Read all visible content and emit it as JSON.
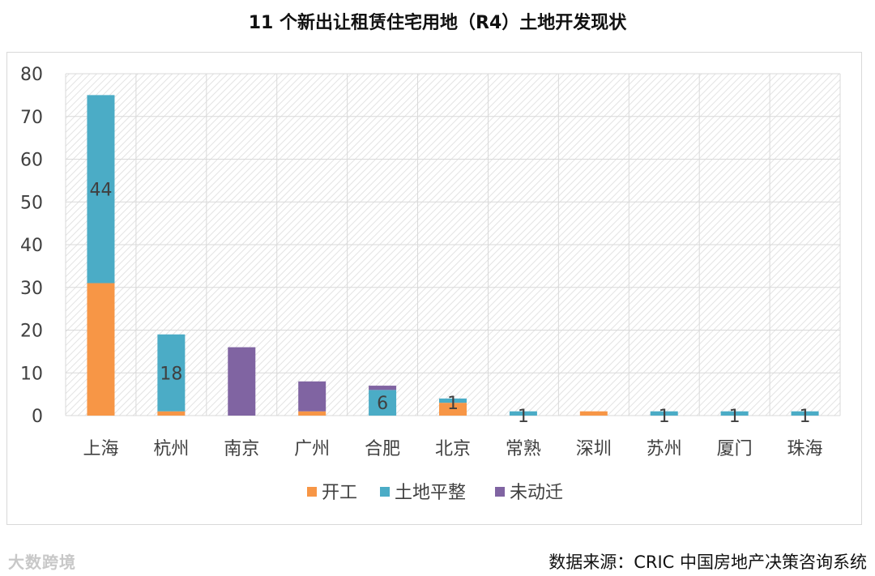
{
  "title": "11 个新出让租赁住宅用地（R4）土地开发现状",
  "source": "数据来源：CRIC 中国房地产决策咨询系统",
  "watermark": "大数跨境",
  "colors": {
    "kaigong": "#F79646",
    "pingzheng": "#4BACC6",
    "weidongqian": "#8064A2",
    "grid": "#d9d9d9",
    "hatch": "#e6e6e6"
  },
  "chart_data": {
    "type": "bar",
    "stacked": true,
    "categories": [
      "上海",
      "杭州",
      "南京",
      "广州",
      "合肥",
      "北京",
      "常熟",
      "深圳",
      "苏州",
      "厦门",
      "珠海"
    ],
    "series": [
      {
        "name": "开工",
        "values": [
          31,
          1,
          0,
          1,
          0,
          3,
          0,
          1,
          0,
          0,
          0
        ]
      },
      {
        "name": "土地平整",
        "values": [
          44,
          18,
          0,
          0,
          6,
          1,
          1,
          0,
          1,
          1,
          1
        ]
      },
      {
        "name": "未动迁",
        "values": [
          0,
          0,
          16,
          7,
          1,
          0,
          0,
          0,
          0,
          0,
          0
        ]
      }
    ],
    "data_labels": [
      "44",
      "18",
      "6",
      "1",
      "1",
      "1",
      "1",
      "1"
    ],
    "ylim": [
      0,
      80
    ],
    "yticks": [
      0,
      10,
      20,
      30,
      40,
      50,
      60,
      70,
      80
    ],
    "grid": true,
    "legend_position": "bottom"
  }
}
